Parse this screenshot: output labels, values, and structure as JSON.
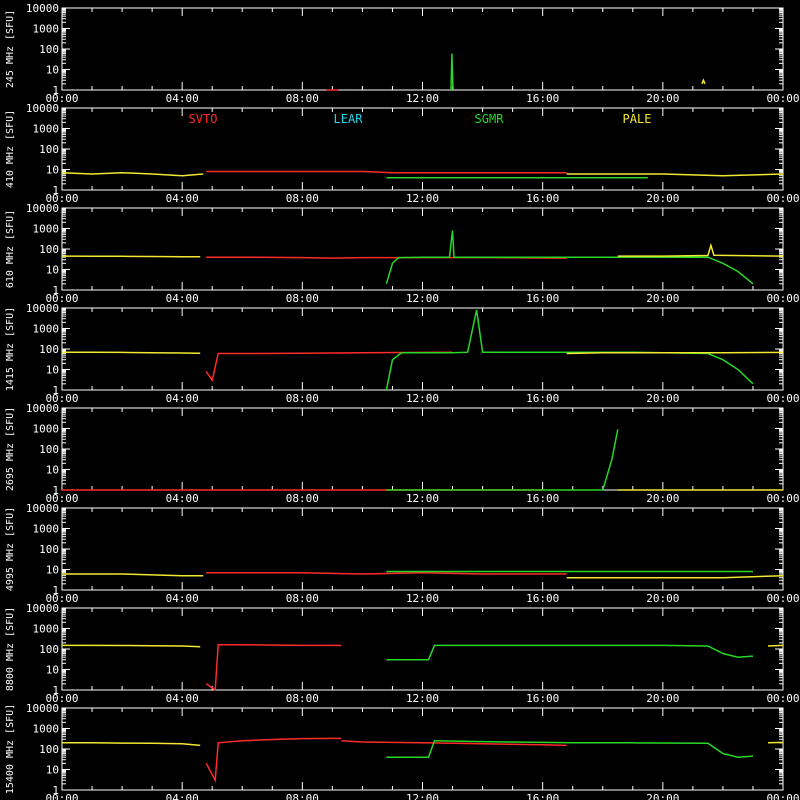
{
  "chart_data": {
    "type": "line",
    "x_tick_labels": [
      "00:00",
      "04:00",
      "08:00",
      "12:00",
      "16:00",
      "20:00",
      "00:00"
    ],
    "xlim_hours": [
      0,
      24
    ],
    "ylim": [
      1,
      10000
    ],
    "y_scale": "log",
    "legend_placement": "top, inside second panel",
    "stations": [
      {
        "name": "SVTO",
        "color": "#ff2a2a"
      },
      {
        "name": "LEAR",
        "color": "#22d5e8"
      },
      {
        "name": "SGMR",
        "color": "#27d827"
      },
      {
        "name": "PALE",
        "color": "#f2e832"
      }
    ],
    "panels": [
      {
        "ylabel": "245 MHz [SFU]",
        "y_tick_labels": [
          "10000",
          "1000",
          "100",
          "10",
          "1"
        ],
        "series": [
          {
            "station": "SVTO",
            "points": [
              [
                8.8,
                1
              ],
              [
                9.2,
                1.0
              ]
            ]
          },
          {
            "station": "SGMR",
            "points": [
              [
                12.95,
                1
              ],
              [
                12.98,
                60
              ],
              [
                13.0,
                5
              ],
              [
                13.02,
                1
              ]
            ]
          },
          {
            "station": "PALE",
            "points": [
              [
                21.3,
                2
              ],
              [
                21.35,
                3
              ],
              [
                21.4,
                2
              ]
            ]
          }
        ]
      },
      {
        "ylabel": "410 MHz [SFU]",
        "y_tick_labels": [
          "10000",
          "1000",
          "100",
          "10",
          "1"
        ],
        "series": [
          {
            "station": "PALE",
            "points": [
              [
                0,
                7
              ],
              [
                1,
                6
              ],
              [
                2,
                7
              ],
              [
                3,
                6
              ],
              [
                4,
                5
              ],
              [
                4.7,
                6
              ]
            ]
          },
          {
            "station": "SVTO",
            "points": [
              [
                4.8,
                8
              ],
              [
                6,
                8
              ],
              [
                8,
                8
              ],
              [
                10,
                8
              ],
              [
                11,
                7
              ],
              [
                13,
                7
              ],
              [
                15,
                7
              ],
              [
                16.8,
                7
              ]
            ]
          },
          {
            "station": "SGMR",
            "points": [
              [
                10.8,
                4
              ],
              [
                12,
                4
              ],
              [
                14,
                4
              ],
              [
                16,
                4
              ],
              [
                18,
                4
              ],
              [
                19.5,
                4
              ]
            ]
          },
          {
            "station": "PALE",
            "points": [
              [
                16.8,
                6
              ],
              [
                18,
                6
              ],
              [
                20,
                6
              ],
              [
                22,
                5
              ],
              [
                24,
                6
              ]
            ]
          }
        ]
      },
      {
        "ylabel": "610 MHz [SFU]",
        "y_tick_labels": [
          "10000",
          "1000",
          "100",
          "10",
          "1"
        ],
        "series": [
          {
            "station": "PALE",
            "points": [
              [
                0,
                45
              ],
              [
                1,
                44
              ],
              [
                2,
                44
              ],
              [
                3,
                43
              ],
              [
                4,
                42
              ],
              [
                4.6,
                42
              ]
            ]
          },
          {
            "station": "SVTO",
            "points": [
              [
                4.8,
                40
              ],
              [
                6,
                40
              ],
              [
                7,
                39
              ],
              [
                8,
                38
              ],
              [
                9,
                36
              ],
              [
                10,
                38
              ],
              [
                11,
                38
              ],
              [
                12,
                38
              ],
              [
                14,
                38
              ],
              [
                16.8,
                36
              ]
            ]
          },
          {
            "station": "SGMR",
            "points": [
              [
                10.8,
                2
              ],
              [
                11.0,
                20
              ],
              [
                11.2,
                38
              ],
              [
                12,
                40
              ],
              [
                12.9,
                40
              ],
              [
                13.0,
                800
              ],
              [
                13.05,
                40
              ],
              [
                14,
                40
              ],
              [
                16,
                40
              ],
              [
                17.0,
                40
              ],
              [
                18,
                40
              ],
              [
                20,
                40
              ],
              [
                21.5,
                40
              ],
              [
                22,
                20
              ],
              [
                22.5,
                8
              ],
              [
                23,
                2
              ]
            ]
          },
          {
            "station": "PALE",
            "points": [
              [
                18.5,
                45
              ],
              [
                20,
                45
              ],
              [
                21.5,
                48
              ],
              [
                21.6,
                150
              ],
              [
                21.7,
                50
              ],
              [
                24,
                45
              ]
            ]
          }
        ]
      },
      {
        "ylabel": "1415 MHz [SFU]",
        "y_tick_labels": [
          "10000",
          "1000",
          "100",
          "10",
          "1"
        ],
        "series": [
          {
            "station": "PALE",
            "points": [
              [
                0,
                70
              ],
              [
                1,
                70
              ],
              [
                2,
                68
              ],
              [
                3,
                65
              ],
              [
                4,
                64
              ],
              [
                4.6,
                62
              ]
            ]
          },
          {
            "station": "SVTO",
            "points": [
              [
                4.8,
                8
              ],
              [
                5.0,
                3
              ],
              [
                5.2,
                60
              ],
              [
                6,
                60
              ],
              [
                8,
                62
              ],
              [
                10,
                65
              ],
              [
                12,
                68
              ],
              [
                13,
                70
              ]
            ]
          },
          {
            "station": "SGMR",
            "points": [
              [
                10.8,
                1
              ],
              [
                11.0,
                30
              ],
              [
                11.3,
                65
              ],
              [
                12,
                65
              ],
              [
                13,
                65
              ],
              [
                13.5,
                70
              ],
              [
                13.8,
                8000
              ],
              [
                14,
                70
              ],
              [
                16,
                70
              ],
              [
                17,
                70
              ],
              [
                19,
                70
              ],
              [
                21.5,
                60
              ],
              [
                22,
                30
              ],
              [
                22.5,
                10
              ],
              [
                23,
                2
              ]
            ]
          },
          {
            "station": "PALE",
            "points": [
              [
                16.8,
                60
              ],
              [
                18,
                65
              ],
              [
                20,
                65
              ],
              [
                22,
                65
              ],
              [
                24,
                68
              ]
            ]
          }
        ]
      },
      {
        "ylabel": "2695 MHz [SFU]",
        "y_tick_labels": [
          "10000",
          "1000",
          "100",
          "10",
          "1"
        ],
        "series": [
          {
            "station": "SVTO",
            "points": [
              [
                0,
                1
              ],
              [
                6,
                1
              ],
              [
                10,
                1
              ],
              [
                16,
                1
              ]
            ]
          },
          {
            "station": "SGMR",
            "points": [
              [
                10.8,
                1
              ],
              [
                16,
                1
              ],
              [
                18.0,
                1
              ],
              [
                18.3,
                30
              ],
              [
                18.5,
                900
              ]
            ]
          },
          {
            "station": "PALE",
            "points": [
              [
                18.5,
                1
              ],
              [
                20,
                1
              ],
              [
                24,
                1
              ]
            ]
          }
        ]
      },
      {
        "ylabel": "4995 MHz [SFU]",
        "y_tick_labels": [
          "10000",
          "1000",
          "100",
          "10",
          "1"
        ],
        "series": [
          {
            "station": "PALE",
            "points": [
              [
                0,
                6
              ],
              [
                2,
                6
              ],
              [
                4,
                5
              ],
              [
                4.7,
                5
              ]
            ]
          },
          {
            "station": "SVTO",
            "points": [
              [
                4.8,
                7
              ],
              [
                6,
                7
              ],
              [
                8,
                7
              ],
              [
                10,
                6
              ],
              [
                12,
                7
              ],
              [
                14,
                6
              ],
              [
                16,
                6
              ],
              [
                16.8,
                6
              ]
            ]
          },
          {
            "station": "SGMR",
            "points": [
              [
                10.8,
                8
              ],
              [
                12,
                8
              ],
              [
                14,
                8
              ],
              [
                16,
                8
              ],
              [
                18,
                8
              ],
              [
                20,
                8
              ],
              [
                22,
                8
              ],
              [
                23,
                8
              ]
            ]
          },
          {
            "station": "PALE",
            "points": [
              [
                16.8,
                4
              ],
              [
                18,
                4
              ],
              [
                20,
                4
              ],
              [
                22,
                4
              ],
              [
                24,
                5
              ]
            ]
          }
        ]
      },
      {
        "ylabel": "8800 MHz [SFU]",
        "y_tick_labels": [
          "10000",
          "1000",
          "100",
          "10",
          "1"
        ],
        "series": [
          {
            "station": "PALE",
            "points": [
              [
                0,
                150
              ],
              [
                1,
                150
              ],
              [
                2,
                148
              ],
              [
                3,
                145
              ],
              [
                4,
                140
              ],
              [
                4.6,
                130
              ]
            ]
          },
          {
            "station": "SVTO",
            "points": [
              [
                4.8,
                2
              ],
              [
                5.1,
                1
              ],
              [
                5.2,
                160
              ],
              [
                6,
                160
              ],
              [
                8,
                150
              ],
              [
                9,
                150
              ],
              [
                9.3,
                150
              ]
            ]
          },
          {
            "station": "SGMR",
            "points": [
              [
                10.8,
                30
              ],
              [
                12,
                30
              ],
              [
                12.2,
                30
              ],
              [
                12.4,
                150
              ],
              [
                14,
                150
              ],
              [
                16,
                150
              ],
              [
                18,
                150
              ],
              [
                20,
                150
              ],
              [
                21.5,
                140
              ],
              [
                22,
                60
              ],
              [
                22.5,
                40
              ],
              [
                23,
                45
              ]
            ]
          },
          {
            "station": "PALE",
            "points": [
              [
                23.5,
                140
              ],
              [
                24,
                150
              ]
            ]
          }
        ]
      },
      {
        "ylabel": "15400 MHz [SFU]",
        "y_tick_labels": [
          "10000",
          "1000",
          "100",
          "10",
          "1"
        ],
        "series": [
          {
            "station": "PALE",
            "points": [
              [
                0,
                200
              ],
              [
                1,
                200
              ],
              [
                2,
                195
              ],
              [
                3,
                190
              ],
              [
                4,
                180
              ],
              [
                4.6,
                150
              ]
            ]
          },
          {
            "station": "SVTO",
            "points": [
              [
                4.8,
                20
              ],
              [
                5.1,
                3
              ],
              [
                5.2,
                200
              ],
              [
                6,
                250
              ],
              [
                7,
                290
              ],
              [
                8,
                320
              ],
              [
                9,
                330
              ],
              [
                9.3,
                330
              ]
            ]
          },
          {
            "station": "SVTO",
            "points": [
              [
                9.3,
                250
              ],
              [
                10,
                220
              ],
              [
                12,
                200
              ],
              [
                14,
                180
              ],
              [
                16,
                160
              ],
              [
                16.8,
                150
              ]
            ]
          },
          {
            "station": "SGMR",
            "points": [
              [
                10.8,
                40
              ],
              [
                11,
                40
              ],
              [
                12.2,
                40
              ],
              [
                12.4,
                250
              ],
              [
                14,
                230
              ],
              [
                16,
                210
              ],
              [
                17,
                200
              ],
              [
                19,
                200
              ],
              [
                21.5,
                190
              ],
              [
                22,
                60
              ],
              [
                22.5,
                40
              ],
              [
                23,
                45
              ]
            ]
          },
          {
            "station": "PALE",
            "points": [
              [
                23.5,
                200
              ],
              [
                24,
                210
              ]
            ]
          }
        ]
      }
    ]
  }
}
